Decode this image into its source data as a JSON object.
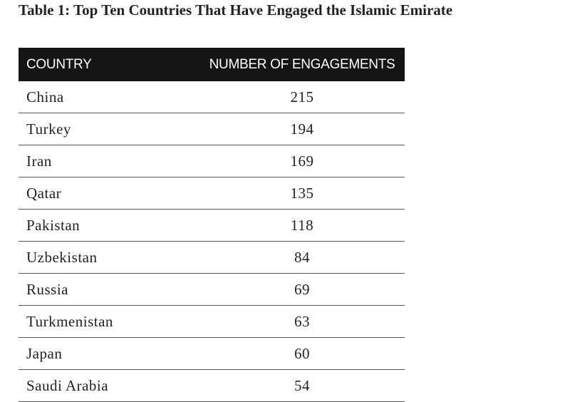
{
  "title": "Table 1: Top Ten Countries That Have Engaged the Islamic Emirate",
  "table": {
    "columns": [
      "COUNTRY",
      "NUMBER OF ENGAGEMENTS"
    ],
    "rows": [
      [
        "China",
        215
      ],
      [
        "Turkey",
        194
      ],
      [
        "Iran",
        169
      ],
      [
        "Qatar",
        135
      ],
      [
        "Pakistan",
        118
      ],
      [
        "Uzbekistan",
        84
      ],
      [
        "Russia",
        69
      ],
      [
        "Turkmenistan",
        63
      ],
      [
        "Japan",
        60
      ],
      [
        "Saudi Arabia",
        54
      ]
    ]
  }
}
